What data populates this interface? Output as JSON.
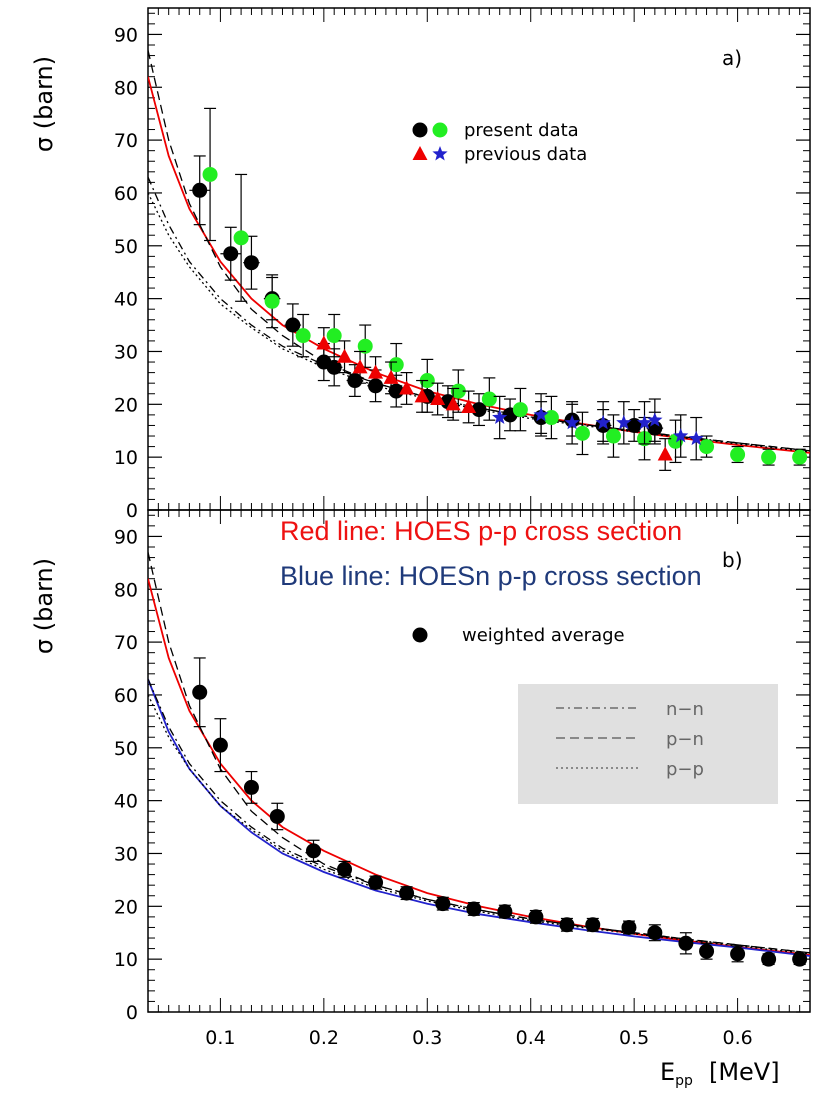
{
  "chart_data": [
    {
      "type": "scatter",
      "panel_label": "a)",
      "ylabel": "σ (barn)",
      "xlim": [
        0.03,
        0.67
      ],
      "ylim": [
        0,
        95
      ],
      "yticks": [
        0,
        10,
        20,
        30,
        40,
        50,
        60,
        70,
        80,
        90
      ],
      "legend": {
        "placement": "top-center",
        "entries": [
          {
            "label": "present data",
            "symbols": [
              "black-circle",
              "green-circle"
            ]
          },
          {
            "label": "previous data",
            "symbols": [
              "red-triangle",
              "blue-star"
            ]
          }
        ]
      },
      "series": [
        {
          "color": "#000000",
          "marker": "circle",
          "points": [
            {
              "x": 0.08,
              "y": 60.5,
              "err": 6.5,
              "xerr": 0.01
            },
            {
              "x": 0.11,
              "y": 48.5,
              "err": 5.0,
              "xerr": 0.01
            },
            {
              "x": 0.13,
              "y": 46.8,
              "err": 5.0,
              "xerr": 0.008
            },
            {
              "x": 0.15,
              "y": 40.0,
              "err": 4.0,
              "xerr": 0.008
            },
            {
              "x": 0.17,
              "y": 35.0,
              "err": 4.0,
              "xerr": 0.008
            },
            {
              "x": 0.2,
              "y": 28.0,
              "err": 3.5,
              "xerr": 0.008
            },
            {
              "x": 0.21,
              "y": 27.0,
              "err": 3.5,
              "xerr": 0.008
            },
            {
              "x": 0.23,
              "y": 24.5,
              "err": 3.0,
              "xerr": 0.008
            },
            {
              "x": 0.25,
              "y": 23.5,
              "err": 3.0,
              "xerr": 0.008
            },
            {
              "x": 0.27,
              "y": 22.5,
              "err": 3.0,
              "xerr": 0.008
            },
            {
              "x": 0.3,
              "y": 21.5,
              "err": 3.0,
              "xerr": 0.008
            },
            {
              "x": 0.32,
              "y": 20.5,
              "err": 3.0,
              "xerr": 0.008
            },
            {
              "x": 0.35,
              "y": 19.0,
              "err": 3.0,
              "xerr": 0.008
            },
            {
              "x": 0.38,
              "y": 18.0,
              "err": 3.0,
              "xerr": 0.008
            },
            {
              "x": 0.41,
              "y": 17.5,
              "err": 3.0,
              "xerr": 0.008
            },
            {
              "x": 0.44,
              "y": 17.0,
              "err": 3.0,
              "xerr": 0.008
            },
            {
              "x": 0.47,
              "y": 16.0,
              "err": 3.0,
              "xerr": 0.008
            },
            {
              "x": 0.5,
              "y": 16.0,
              "err": 3.0,
              "xerr": 0.008
            },
            {
              "x": 0.52,
              "y": 15.5,
              "err": 3.0,
              "xerr": 0.008
            }
          ]
        },
        {
          "color": "#22ee22",
          "marker": "circle",
          "points": [
            {
              "x": 0.09,
              "y": 63.5,
              "err": 12.5
            },
            {
              "x": 0.12,
              "y": 51.5,
              "err": 12.0
            },
            {
              "x": 0.15,
              "y": 39.5,
              "err": 5.0
            },
            {
              "x": 0.18,
              "y": 33.0,
              "err": 4.0
            },
            {
              "x": 0.21,
              "y": 33.0,
              "err": 4.0
            },
            {
              "x": 0.24,
              "y": 31.0,
              "err": 4.0
            },
            {
              "x": 0.27,
              "y": 27.5,
              "err": 4.0
            },
            {
              "x": 0.3,
              "y": 24.5,
              "err": 4.0
            },
            {
              "x": 0.33,
              "y": 22.5,
              "err": 4.0
            },
            {
              "x": 0.36,
              "y": 21.0,
              "err": 4.0
            },
            {
              "x": 0.39,
              "y": 19.0,
              "err": 4.0
            },
            {
              "x": 0.42,
              "y": 17.5,
              "err": 4.0
            },
            {
              "x": 0.45,
              "y": 14.5,
              "err": 4.0
            },
            {
              "x": 0.48,
              "y": 14.0,
              "err": 4.0
            },
            {
              "x": 0.51,
              "y": 13.5,
              "err": 4.0
            },
            {
              "x": 0.54,
              "y": 13.0,
              "err": 4.0
            },
            {
              "x": 0.57,
              "y": 12.0,
              "err": 2.0
            },
            {
              "x": 0.6,
              "y": 10.5,
              "err": 1.5
            },
            {
              "x": 0.63,
              "y": 10.0,
              "err": 1.5
            },
            {
              "x": 0.66,
              "y": 10.0,
              "err": 1.5
            }
          ]
        },
        {
          "color": "#ee0000",
          "marker": "triangle",
          "points": [
            {
              "x": 0.2,
              "y": 31.5,
              "err": 3.0
            },
            {
              "x": 0.22,
              "y": 29.0,
              "err": 3.0
            },
            {
              "x": 0.235,
              "y": 27.0,
              "err": 3.0
            },
            {
              "x": 0.25,
              "y": 26.0,
              "err": 3.0
            },
            {
              "x": 0.265,
              "y": 25.0,
              "err": 3.0
            },
            {
              "x": 0.28,
              "y": 23.0,
              "err": 3.0
            },
            {
              "x": 0.295,
              "y": 21.5,
              "err": 3.0
            },
            {
              "x": 0.31,
              "y": 21.0,
              "err": 3.0
            },
            {
              "x": 0.325,
              "y": 20.0,
              "err": 3.0
            },
            {
              "x": 0.34,
              "y": 19.5,
              "err": 3.0
            },
            {
              "x": 0.53,
              "y": 10.5,
              "err": 3.0
            }
          ]
        },
        {
          "color": "#2222cc",
          "marker": "star",
          "points": [
            {
              "x": 0.37,
              "y": 17.5,
              "err": 4.0
            },
            {
              "x": 0.41,
              "y": 18.0,
              "err": 4.0
            },
            {
              "x": 0.44,
              "y": 16.5,
              "err": 4.0
            },
            {
              "x": 0.47,
              "y": 16.5,
              "err": 4.0
            },
            {
              "x": 0.49,
              "y": 16.5,
              "err": 4.0
            },
            {
              "x": 0.51,
              "y": 16.5,
              "err": 4.0
            },
            {
              "x": 0.52,
              "y": 17.0,
              "err": 4.0
            },
            {
              "x": 0.545,
              "y": 14.0,
              "err": 4.0
            },
            {
              "x": 0.56,
              "y": 13.5,
              "err": 4.0
            }
          ]
        }
      ],
      "curves": [
        {
          "color": "#ee0000",
          "dash": "solid",
          "x": [
            0.03,
            0.05,
            0.07,
            0.1,
            0.13,
            0.16,
            0.2,
            0.25,
            0.3,
            0.35,
            0.4,
            0.45,
            0.5,
            0.55,
            0.6,
            0.67
          ],
          "y": [
            82,
            67,
            57,
            47,
            40,
            35,
            30.5,
            26,
            22.5,
            20,
            18,
            16.3,
            14.8,
            13.5,
            12.3,
            10.8
          ]
        },
        {
          "color": "#000000",
          "dash": "dash",
          "x": [
            0.03,
            0.05,
            0.07,
            0.1,
            0.13,
            0.16,
            0.2,
            0.25,
            0.3,
            0.35,
            0.4,
            0.45,
            0.5,
            0.55,
            0.6,
            0.67
          ],
          "y": [
            87,
            70,
            58,
            46,
            38,
            33,
            28,
            24,
            21.3,
            19.3,
            17.6,
            16.2,
            15,
            13.8,
            12.7,
            11.2
          ]
        },
        {
          "color": "#000000",
          "dash": "dashdot",
          "x": [
            0.03,
            0.05,
            0.07,
            0.1,
            0.13,
            0.16,
            0.2,
            0.25,
            0.3,
            0.35,
            0.4,
            0.45,
            0.5,
            0.55,
            0.6,
            0.67
          ],
          "y": [
            63,
            54,
            47,
            40,
            35,
            31,
            27.5,
            24,
            21.3,
            19.3,
            17.6,
            16.2,
            15,
            13.8,
            12.7,
            11.2
          ]
        },
        {
          "color": "#000000",
          "dash": "dot",
          "x": [
            0.03,
            0.05,
            0.07,
            0.1,
            0.13,
            0.16,
            0.2,
            0.25,
            0.3,
            0.35,
            0.4,
            0.45,
            0.5,
            0.55,
            0.6,
            0.67
          ],
          "y": [
            60,
            52,
            46,
            39,
            34.5,
            30.5,
            27,
            23.5,
            21,
            19,
            17.3,
            16,
            14.8,
            13.6,
            12.5,
            11
          ]
        }
      ]
    },
    {
      "type": "scatter",
      "panel_label": "b)",
      "ylabel": "σ (barn)",
      "xlabel": "E",
      "xlabel_sub": "pp",
      "xlabel_unit": "[MeV]",
      "xlim": [
        0.03,
        0.67
      ],
      "ylim": [
        0,
        95
      ],
      "xticks": [
        0.1,
        0.2,
        0.3,
        0.4,
        0.5,
        0.6
      ],
      "xtick_labels": [
        "0.1",
        "0.2",
        "0.3",
        "0.4",
        "0.5",
        "0.6"
      ],
      "yticks": [
        0,
        10,
        20,
        30,
        40,
        50,
        60,
        70,
        80,
        90
      ],
      "legend": {
        "placement": "top-center",
        "entries": [
          {
            "label": "weighted average",
            "symbols": [
              "black-circle"
            ]
          }
        ]
      },
      "style_legend": {
        "placement": "right",
        "background": "#e0e0e0",
        "entries": [
          {
            "label": "n−n",
            "dash": "dashdot"
          },
          {
            "label": "p−n",
            "dash": "dash"
          },
          {
            "label": "p−p",
            "dash": "dot"
          }
        ]
      },
      "series": [
        {
          "color": "#000000",
          "marker": "circle",
          "points": [
            {
              "x": 0.08,
              "y": 60.5,
              "err": 6.5
            },
            {
              "x": 0.1,
              "y": 50.5,
              "err": 5.0
            },
            {
              "x": 0.13,
              "y": 42.5,
              "err": 3.0
            },
            {
              "x": 0.155,
              "y": 37.0,
              "err": 2.5
            },
            {
              "x": 0.19,
              "y": 30.5,
              "err": 2.0
            },
            {
              "x": 0.22,
              "y": 27.0,
              "err": 1.5
            },
            {
              "x": 0.25,
              "y": 24.5,
              "err": 1.2
            },
            {
              "x": 0.28,
              "y": 22.5,
              "err": 1.2
            },
            {
              "x": 0.315,
              "y": 20.5,
              "err": 1.2
            },
            {
              "x": 0.345,
              "y": 19.5,
              "err": 1.2
            },
            {
              "x": 0.375,
              "y": 19.0,
              "err": 1.2
            },
            {
              "x": 0.405,
              "y": 18.0,
              "err": 1.2
            },
            {
              "x": 0.435,
              "y": 16.5,
              "err": 1.2
            },
            {
              "x": 0.46,
              "y": 16.5,
              "err": 1.2
            },
            {
              "x": 0.495,
              "y": 16.0,
              "err": 1.2
            },
            {
              "x": 0.52,
              "y": 15.0,
              "err": 1.5
            },
            {
              "x": 0.55,
              "y": 13.0,
              "err": 2.0
            },
            {
              "x": 0.57,
              "y": 11.5,
              "err": 1.5
            },
            {
              "x": 0.6,
              "y": 11.0,
              "err": 1.5
            },
            {
              "x": 0.63,
              "y": 10.0,
              "err": 1.0
            },
            {
              "x": 0.66,
              "y": 10.0,
              "err": 1.0
            }
          ]
        }
      ],
      "curves": [
        {
          "color": "#ee0000",
          "dash": "solid",
          "x": [
            0.03,
            0.05,
            0.07,
            0.1,
            0.13,
            0.16,
            0.2,
            0.25,
            0.3,
            0.35,
            0.4,
            0.45,
            0.5,
            0.55,
            0.6,
            0.67
          ],
          "y": [
            82,
            67,
            57,
            47,
            40,
            35,
            30.5,
            26,
            22.5,
            20,
            18,
            16.3,
            14.8,
            13.5,
            12.3,
            10.8
          ]
        },
        {
          "color": "#2222cc",
          "dash": "solid",
          "x": [
            0.03,
            0.05,
            0.07,
            0.1,
            0.13,
            0.16,
            0.2,
            0.25,
            0.3,
            0.35,
            0.4,
            0.45,
            0.5,
            0.55,
            0.6,
            0.67
          ],
          "y": [
            63,
            53,
            46,
            39,
            34,
            30,
            26.5,
            23,
            20.5,
            18.5,
            17,
            15.6,
            14.3,
            13.2,
            12.2,
            10.6
          ]
        },
        {
          "color": "#000000",
          "dash": "dash",
          "x": [
            0.03,
            0.05,
            0.07,
            0.1,
            0.13,
            0.16,
            0.2,
            0.25,
            0.3,
            0.35,
            0.4,
            0.45,
            0.5,
            0.55,
            0.6,
            0.67
          ],
          "y": [
            87,
            70,
            58,
            46,
            38,
            33,
            28,
            24,
            21.3,
            19.3,
            17.6,
            16.2,
            15,
            13.8,
            12.7,
            11.2
          ]
        },
        {
          "color": "#000000",
          "dash": "dashdot",
          "x": [
            0.03,
            0.05,
            0.07,
            0.1,
            0.13,
            0.16,
            0.2,
            0.25,
            0.3,
            0.35,
            0.4,
            0.45,
            0.5,
            0.55,
            0.6,
            0.67
          ],
          "y": [
            63,
            54,
            47,
            40,
            35,
            31,
            27.5,
            24,
            21.3,
            19.3,
            17.6,
            16.2,
            15,
            13.8,
            12.7,
            11.2
          ]
        },
        {
          "color": "#000000",
          "dash": "dot",
          "x": [
            0.03,
            0.05,
            0.07,
            0.1,
            0.13,
            0.16,
            0.2,
            0.25,
            0.3,
            0.35,
            0.4,
            0.45,
            0.5,
            0.55,
            0.6,
            0.67
          ],
          "y": [
            60,
            52,
            46,
            39,
            34.5,
            30.5,
            27,
            23.5,
            21,
            19,
            17.3,
            16,
            14.8,
            13.6,
            12.5,
            11
          ]
        }
      ]
    }
  ],
  "overlay": {
    "red_text": "Red line: HOES p-p cross section",
    "red_color": "#ee1111",
    "blue_text": "Blue line: HOESn p-p cross section",
    "blue_color": "#1f3a7a"
  }
}
